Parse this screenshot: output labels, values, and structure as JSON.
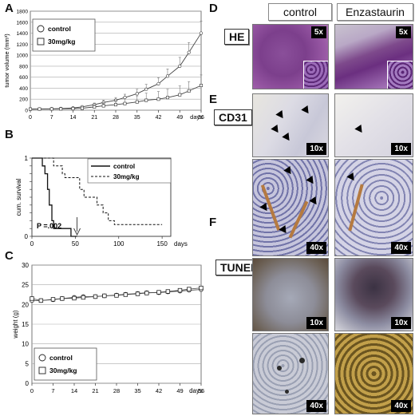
{
  "panels": {
    "A": "A",
    "B": "B",
    "C": "C",
    "D": "D",
    "E": "E",
    "F": "F"
  },
  "chart_data": [
    {
      "type": "line",
      "ylabel": "tumor volume (mm³)",
      "xlabel": "days",
      "x": [
        0,
        3,
        7,
        10,
        14,
        17,
        21,
        24,
        28,
        31,
        35,
        38,
        42,
        45,
        49,
        52,
        56
      ],
      "xticks": [
        0,
        7,
        14,
        21,
        28,
        35,
        42,
        49,
        56
      ],
      "yticks": [
        0,
        200,
        400,
        600,
        800,
        1000,
        1200,
        1400,
        1600,
        1800
      ],
      "ylim": [
        0,
        1800
      ],
      "grid": true,
      "legend_position": "top-left",
      "series": [
        {
          "name": "control",
          "marker": "circle",
          "values": [
            20,
            22,
            25,
            30,
            40,
            60,
            100,
            140,
            180,
            230,
            300,
            380,
            480,
            620,
            800,
            1050,
            1400
          ],
          "err": [
            5,
            5,
            5,
            8,
            10,
            15,
            30,
            40,
            50,
            60,
            80,
            90,
            110,
            130,
            160,
            180,
            220
          ]
        },
        {
          "name": "30mg/kg",
          "marker": "square",
          "values": [
            20,
            21,
            22,
            24,
            28,
            35,
            60,
            80,
            100,
            120,
            150,
            180,
            200,
            230,
            280,
            350,
            450
          ],
          "err": [
            5,
            5,
            5,
            6,
            8,
            10,
            40,
            60,
            80,
            90,
            110,
            130,
            140,
            150,
            160,
            170,
            190
          ]
        }
      ]
    },
    {
      "type": "line",
      "ylabel": "cum. survival",
      "xlabel": "days",
      "xticks": [
        0,
        50,
        100,
        150
      ],
      "yticks": [
        0,
        0.1,
        0.2,
        0.3,
        0.4,
        0.5,
        0.6,
        0.7,
        0.8,
        0.9,
        1
      ],
      "ylim": [
        0,
        1
      ],
      "xlim": [
        0,
        160
      ],
      "annotation": "P =.002",
      "legend_position": "top-right",
      "series": [
        {
          "name": "control",
          "style": "solid",
          "steps": [
            [
              0,
              1
            ],
            [
              12,
              1
            ],
            [
              12,
              0.9
            ],
            [
              15,
              0.9
            ],
            [
              15,
              0.8
            ],
            [
              18,
              0.8
            ],
            [
              18,
              0.6
            ],
            [
              20,
              0.6
            ],
            [
              20,
              0.4
            ],
            [
              23,
              0.4
            ],
            [
              23,
              0.2
            ],
            [
              25,
              0.2
            ],
            [
              25,
              0.1
            ],
            [
              45,
              0.1
            ],
            [
              45,
              0
            ],
            [
              52,
              0
            ]
          ]
        },
        {
          "name": "30mg/kg",
          "style": "dashed",
          "steps": [
            [
              0,
              1
            ],
            [
              25,
              1
            ],
            [
              25,
              0.9
            ],
            [
              35,
              0.9
            ],
            [
              35,
              0.8
            ],
            [
              38,
              0.8
            ],
            [
              38,
              0.75
            ],
            [
              55,
              0.75
            ],
            [
              55,
              0.6
            ],
            [
              60,
              0.6
            ],
            [
              60,
              0.5
            ],
            [
              75,
              0.5
            ],
            [
              75,
              0.4
            ],
            [
              82,
              0.4
            ],
            [
              82,
              0.3
            ],
            [
              88,
              0.3
            ],
            [
              88,
              0.2
            ],
            [
              95,
              0.2
            ],
            [
              95,
              0.15
            ],
            [
              150,
              0.15
            ]
          ]
        }
      ]
    },
    {
      "type": "line",
      "ylabel": "weight (g)",
      "xlabel": "days",
      "x": [
        0,
        3,
        7,
        10,
        14,
        17,
        21,
        24,
        28,
        31,
        35,
        38,
        42,
        45,
        49,
        52,
        56
      ],
      "xticks": [
        0,
        7,
        14,
        21,
        28,
        35,
        42,
        49,
        56
      ],
      "yticks": [
        0,
        5,
        10,
        15,
        20,
        25,
        30
      ],
      "ylim": [
        0,
        30
      ],
      "grid": true,
      "legend_position": "bottom-left",
      "series": [
        {
          "name": "control",
          "marker": "circle",
          "values": [
            21,
            21,
            21.2,
            21.5,
            21.8,
            22,
            22,
            22.2,
            22.4,
            22.6,
            22.8,
            23,
            23,
            23.2,
            23.4,
            23.6,
            23.8
          ]
        },
        {
          "name": "30mg/kg",
          "marker": "square",
          "values": [
            21.5,
            21,
            21.3,
            21.5,
            21.6,
            21.8,
            22,
            22.2,
            22.3,
            22.5,
            22.7,
            22.9,
            23.1,
            23.3,
            23.6,
            23.9,
            24.2
          ]
        }
      ]
    }
  ],
  "micro": {
    "col_control": "control",
    "col_treat": "Enzastaurin",
    "he_label": "HE",
    "cd31_label": "CD31",
    "tunel_label": "TUNEL",
    "mag5": "5x",
    "mag10": "10x",
    "mag40": "40x"
  }
}
